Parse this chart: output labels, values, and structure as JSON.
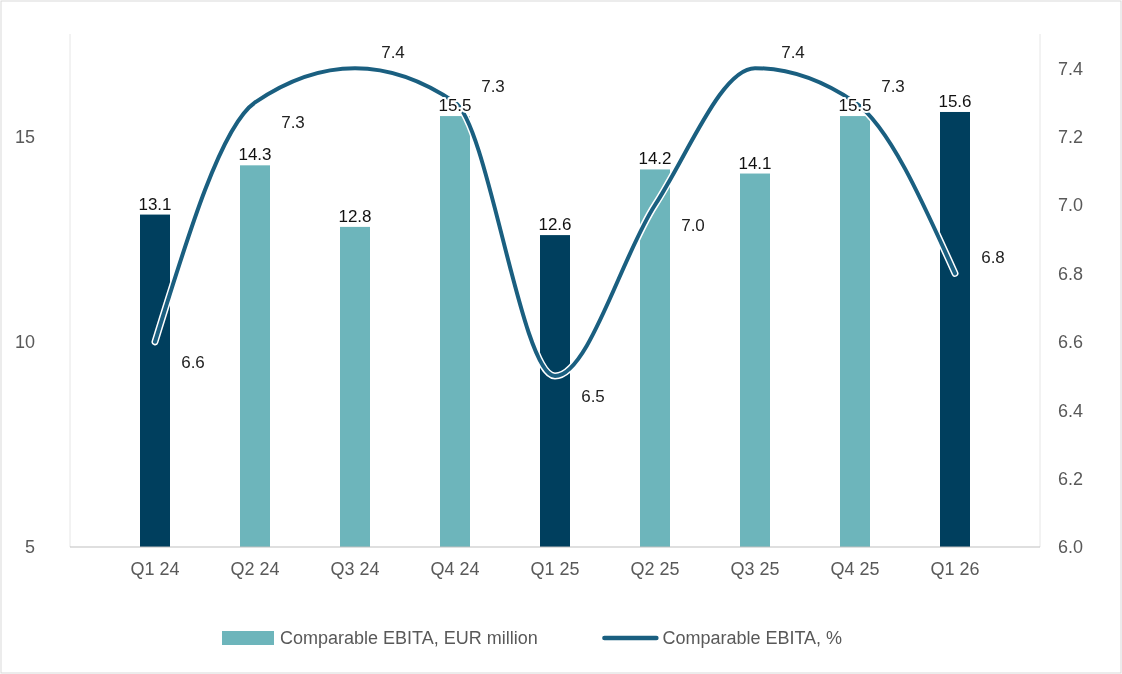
{
  "chart_data": {
    "type": "bar",
    "categories": [
      "Q1 24",
      "Q2 24",
      "Q3 24",
      "Q4 24",
      "Q1 25",
      "Q2 25",
      "Q3 25",
      "Q4 25",
      "Q1 26"
    ],
    "series": [
      {
        "name": "Comparable EBITA, EUR million",
        "color": "#6db5bb",
        "colors": [
          "#003f5e",
          "#6db5bb",
          "#6db5bb",
          "#6db5bb",
          "#003f5e",
          "#6db5bb",
          "#6db5bb",
          "#6db5bb",
          "#003f5e"
        ],
        "values": [
          13.1,
          14.3,
          12.8,
          15.5,
          12.6,
          14.2,
          14.1,
          15.5,
          15.6
        ],
        "value_labels": [
          "13.1",
          "14.3",
          "12.8",
          "15.5",
          "12.6",
          "14.2",
          "14.1",
          "15.5",
          "15.6"
        ]
      },
      {
        "name": "Comparable EBITA, %",
        "type": "line",
        "axis": "y2",
        "color": "#1a5f80",
        "values": [
          6.6,
          7.3,
          7.4,
          7.3,
          6.5,
          7.0,
          7.4,
          7.3,
          6.8
        ],
        "value_labels": [
          "6.6",
          "7.3",
          "7.4",
          "7.3",
          "6.5",
          "7.0",
          "7.4",
          "7.3",
          "6.8"
        ]
      }
    ],
    "ylim": [
      5,
      17.5
    ],
    "yticks": [
      5,
      10,
      15
    ],
    "y2lim": [
      6,
      7.5
    ],
    "y2ticks": [
      {
        "value": 6,
        "label": "6.0"
      },
      {
        "value": 6.2,
        "label": "6.2"
      },
      {
        "value": 6.4,
        "label": "6.4"
      },
      {
        "value": 6.6,
        "label": "6.6"
      },
      {
        "value": 6.8,
        "label": "6.8"
      },
      {
        "value": 7,
        "label": "7.0"
      },
      {
        "value": 7.2,
        "label": "7.2"
      },
      {
        "value": 7.4,
        "label": "7.4"
      }
    ],
    "legend": "bottom"
  }
}
